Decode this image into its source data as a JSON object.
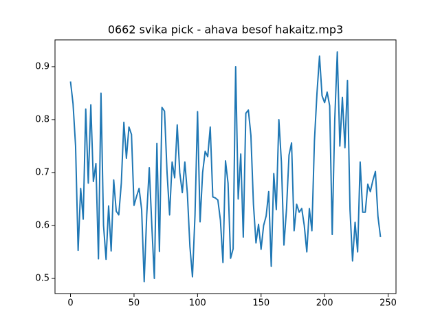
{
  "chart_data": {
    "type": "line",
    "title": "0662 svika pick - ahava besof hakaitz.mp3",
    "x": [
      0,
      2,
      4,
      6,
      8,
      10,
      12,
      14,
      16,
      18,
      20,
      22,
      24,
      26,
      28,
      30,
      32,
      34,
      36,
      38,
      40,
      42,
      44,
      46,
      48,
      50,
      52,
      54,
      56,
      58,
      60,
      62,
      64,
      66,
      68,
      70,
      72,
      74,
      76,
      78,
      80,
      82,
      84,
      86,
      88,
      90,
      92,
      94,
      96,
      98,
      100,
      102,
      104,
      106,
      108,
      110,
      112,
      114,
      116,
      118,
      120,
      122,
      124,
      126,
      128,
      130,
      132,
      134,
      136,
      138,
      140,
      142,
      144,
      146,
      148,
      150,
      152,
      154,
      156,
      158,
      160,
      162,
      164,
      166,
      168,
      170,
      172,
      174,
      176,
      178,
      180,
      182,
      184,
      186,
      188,
      190,
      192,
      194,
      196,
      198,
      200,
      202,
      204,
      206,
      208,
      210,
      212,
      214,
      216,
      218,
      220,
      222,
      224,
      226,
      228,
      230,
      232,
      234,
      236,
      238,
      240,
      242,
      244
    ],
    "values": [
      0.872,
      0.83,
      0.75,
      0.553,
      0.67,
      0.612,
      0.82,
      0.68,
      0.828,
      0.683,
      0.717,
      0.537,
      0.85,
      0.6,
      0.536,
      0.637,
      0.552,
      0.686,
      0.627,
      0.62,
      0.68,
      0.795,
      0.727,
      0.786,
      0.772,
      0.638,
      0.655,
      0.67,
      0.63,
      0.494,
      0.62,
      0.709,
      0.6,
      0.5,
      0.755,
      0.551,
      0.823,
      0.816,
      0.7,
      0.62,
      0.72,
      0.69,
      0.79,
      0.7,
      0.662,
      0.72,
      0.66,
      0.56,
      0.503,
      0.62,
      0.815,
      0.607,
      0.7,
      0.74,
      0.73,
      0.786,
      0.654,
      0.652,
      0.648,
      0.61,
      0.53,
      0.722,
      0.68,
      0.538,
      0.556,
      0.9,
      0.65,
      0.735,
      0.578,
      0.812,
      0.818,
      0.77,
      0.64,
      0.567,
      0.602,
      0.555,
      0.6,
      0.618,
      0.664,
      0.523,
      0.698,
      0.63,
      0.8,
      0.72,
      0.563,
      0.63,
      0.733,
      0.756,
      0.59,
      0.64,
      0.625,
      0.632,
      0.6,
      0.55,
      0.632,
      0.59,
      0.76,
      0.85,
      0.92,
      0.845,
      0.832,
      0.852,
      0.826,
      0.583,
      0.8,
      0.928,
      0.75,
      0.842,
      0.747,
      0.874,
      0.63,
      0.533,
      0.606,
      0.55,
      0.72,
      0.625,
      0.625,
      0.678,
      0.664,
      0.685,
      0.702,
      0.617,
      0.578
    ],
    "color": "#1f77b4",
    "xlim": [
      -12.2,
      256.2
    ],
    "xticks": [
      0,
      50,
      100,
      150,
      200,
      250
    ],
    "ylim": [
      0.4714,
      0.9506
    ],
    "yticks": [
      0.5,
      0.6,
      0.7,
      0.8,
      0.9
    ]
  }
}
